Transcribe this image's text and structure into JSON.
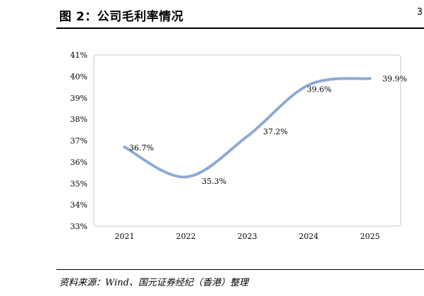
{
  "header": {
    "title": "图 2：公司毛利率情况",
    "corner_mark": "3"
  },
  "footer": {
    "source": "资料来源：Wind、国元证券经纪（香港）整理"
  },
  "colors": {
    "line": "#8eaad5",
    "frame": "#c8c8c8",
    "text": "#000000"
  },
  "chart_data": {
    "type": "line",
    "title": "",
    "xlabel": "",
    "ylabel": "",
    "categories": [
      "2021",
      "2022",
      "2023",
      "2024",
      "2025"
    ],
    "series": [
      {
        "values": [
          36.7,
          35.3,
          37.2,
          39.6,
          39.9
        ],
        "data_labels": [
          "36.7%",
          "35.3%",
          "37.2%",
          "39.6%",
          "39.9%"
        ]
      }
    ],
    "ylim": [
      33,
      41
    ],
    "yticks": [
      33,
      34,
      35,
      36,
      37,
      38,
      39,
      40,
      41
    ],
    "ytick_labels": [
      "33%",
      "34%",
      "35%",
      "36%",
      "37%",
      "38%",
      "39%",
      "40%",
      "41%"
    ],
    "smooth": true,
    "grid": false,
    "legend": "none"
  }
}
